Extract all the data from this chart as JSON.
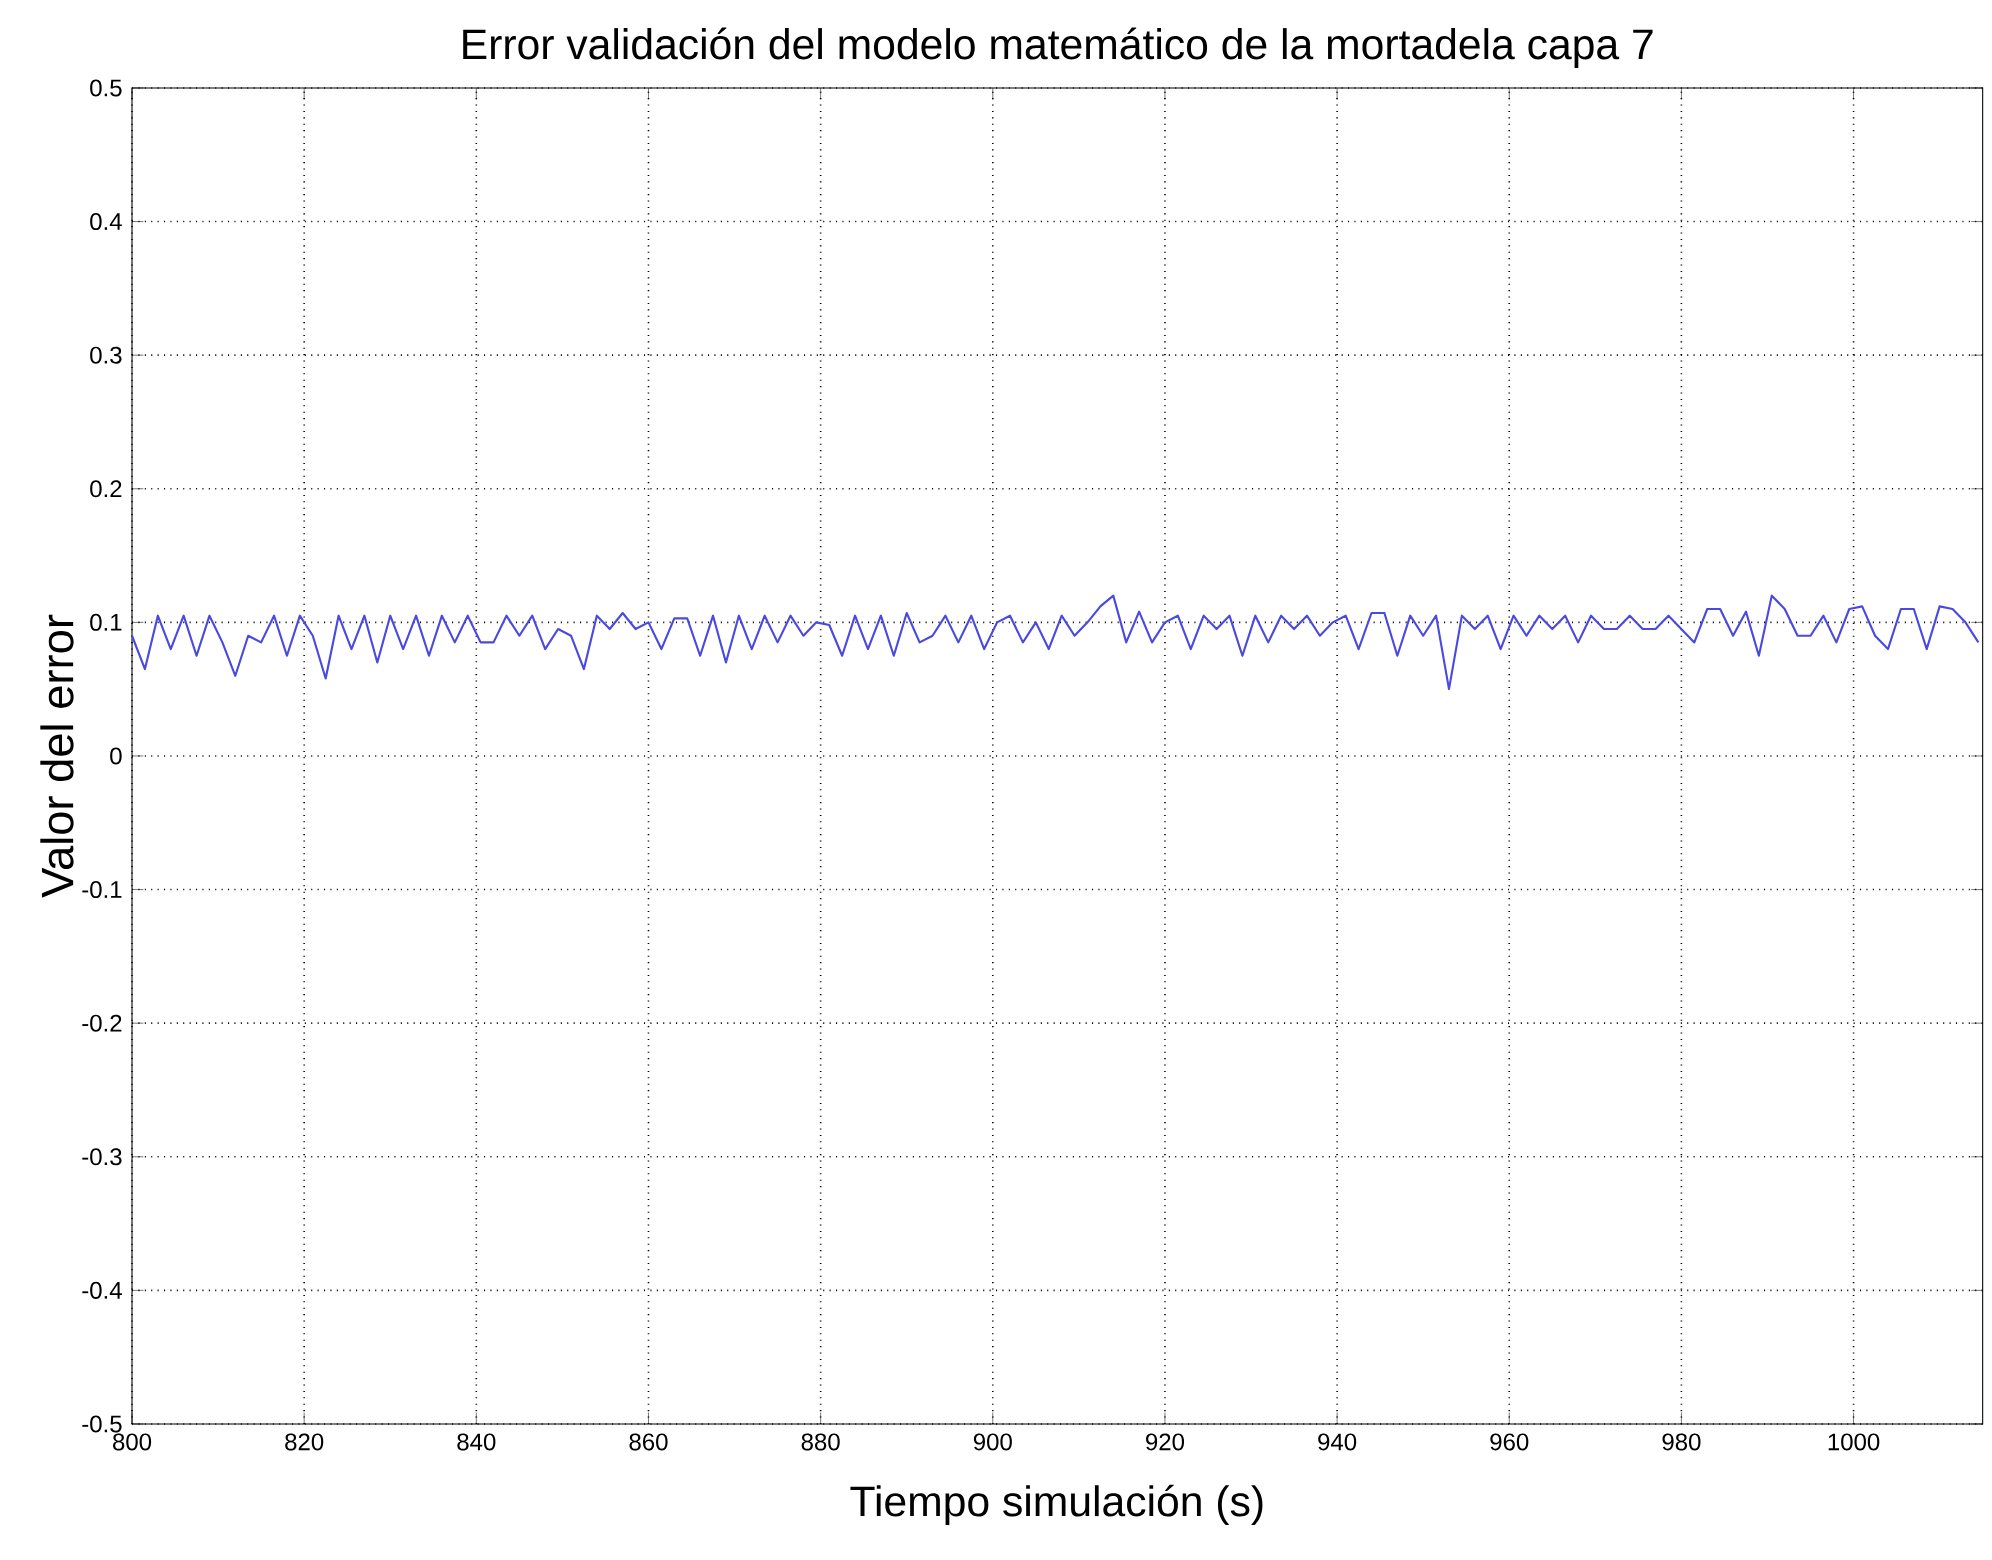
{
  "chart_data": {
    "type": "line",
    "title": "Error validación del modelo matemático de la mortadela capa 7",
    "xlabel": "Tiempo simulación (s)",
    "ylabel": "Valor del error",
    "xlim": [
      800,
      1015
    ],
    "ylim": [
      -0.5,
      0.5
    ],
    "xticks": [
      800,
      820,
      840,
      860,
      880,
      900,
      920,
      940,
      960,
      980,
      1000
    ],
    "yticks": [
      -0.5,
      -0.4,
      -0.3,
      -0.2,
      -0.1,
      0,
      0.1,
      0.2,
      0.3,
      0.4,
      0.5
    ],
    "grid": true,
    "marker": "none",
    "line_style": "solid",
    "series": [
      {
        "color": "#4a4ae0",
        "x": [
          800,
          801.5,
          803,
          804.5,
          806,
          807.5,
          809,
          810.5,
          812,
          813.5,
          815,
          816.5,
          818,
          819.5,
          821,
          822.5,
          824,
          825.5,
          827,
          828.5,
          830,
          831.5,
          833,
          834.5,
          836,
          837.5,
          839,
          840.5,
          842,
          843.5,
          845,
          846.5,
          848,
          849.5,
          851,
          852.5,
          854,
          855.5,
          857,
          858.5,
          860,
          861.5,
          863,
          864.5,
          866,
          867.5,
          869,
          870.5,
          872,
          873.5,
          875,
          876.5,
          878,
          879.5,
          881,
          882.5,
          884,
          885.5,
          887,
          888.5,
          890,
          891.5,
          893,
          894.5,
          896,
          897.5,
          899,
          900.5,
          902,
          903.5,
          905,
          906.5,
          908,
          909.5,
          911,
          912.5,
          914,
          915.5,
          917,
          918.5,
          920,
          921.5,
          923,
          924.5,
          926,
          927.5,
          929,
          930.5,
          932,
          933.5,
          935,
          936.5,
          938,
          939.5,
          941,
          942.5,
          944,
          945.5,
          947,
          948.5,
          950,
          951.5,
          953,
          954.5,
          956,
          957.5,
          959,
          960.5,
          962,
          963.5,
          965,
          966.5,
          968,
          969.5,
          971,
          972.5,
          974,
          975.5,
          977,
          978.5,
          980,
          981.5,
          983,
          984.5,
          986,
          987.5,
          989,
          990.5,
          992,
          993.5,
          995,
          996.5,
          998,
          999.5,
          1001,
          1002.5,
          1004,
          1005.5,
          1007,
          1008.5,
          1010,
          1011.5,
          1013,
          1014.5
        ],
        "values": [
          0.09,
          0.065,
          0.105,
          0.08,
          0.105,
          0.075,
          0.105,
          0.085,
          0.06,
          0.09,
          0.085,
          0.105,
          0.075,
          0.105,
          0.09,
          0.058,
          0.105,
          0.08,
          0.105,
          0.07,
          0.105,
          0.08,
          0.105,
          0.075,
          0.105,
          0.085,
          0.105,
          0.085,
          0.085,
          0.105,
          0.09,
          0.105,
          0.08,
          0.095,
          0.09,
          0.065,
          0.105,
          0.095,
          0.107,
          0.095,
          0.1,
          0.08,
          0.103,
          0.103,
          0.075,
          0.105,
          0.07,
          0.105,
          0.08,
          0.105,
          0.085,
          0.105,
          0.09,
          0.1,
          0.098,
          0.075,
          0.105,
          0.08,
          0.105,
          0.075,
          0.107,
          0.085,
          0.09,
          0.105,
          0.085,
          0.105,
          0.08,
          0.1,
          0.105,
          0.085,
          0.1,
          0.08,
          0.105,
          0.09,
          0.1,
          0.112,
          0.12,
          0.085,
          0.108,
          0.085,
          0.1,
          0.105,
          0.08,
          0.105,
          0.095,
          0.105,
          0.075,
          0.105,
          0.085,
          0.105,
          0.095,
          0.105,
          0.09,
          0.1,
          0.105,
          0.08,
          0.107,
          0.107,
          0.075,
          0.105,
          0.09,
          0.105,
          0.05,
          0.105,
          0.095,
          0.105,
          0.08,
          0.105,
          0.09,
          0.105,
          0.095,
          0.105,
          0.085,
          0.105,
          0.095,
          0.095,
          0.105,
          0.095,
          0.095,
          0.105,
          0.095,
          0.085,
          0.11,
          0.11,
          0.09,
          0.108,
          0.075,
          0.12,
          0.11,
          0.09,
          0.09,
          0.105,
          0.085,
          0.11,
          0.112,
          0.09,
          0.08,
          0.11,
          0.11,
          0.08,
          0.112,
          0.11,
          0.1,
          0.085
        ]
      }
    ]
  }
}
